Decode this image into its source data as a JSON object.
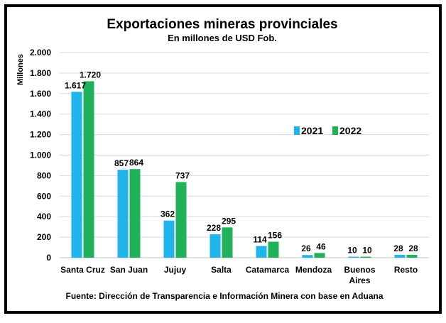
{
  "chart_data": {
    "type": "bar",
    "title": "Exportaciones mineras provinciales",
    "subtitle": "En millones de USD Fob.",
    "ylabel": "Millones",
    "xlabel": "",
    "ylim": [
      0,
      2000
    ],
    "yticks": [
      0,
      200,
      400,
      600,
      800,
      1000,
      1200,
      1400,
      1600,
      1800,
      2000
    ],
    "ytick_labels": [
      "0",
      "200",
      "400",
      "600",
      "800",
      "1.000",
      "1.200",
      "1.400",
      "1.600",
      "1.800",
      "2.000"
    ],
    "categories": [
      "Santa Cruz",
      "San Juan",
      "Jujuy",
      "Salta",
      "Catamarca",
      "Mendoza",
      "Buenos Aires",
      "Resto"
    ],
    "series": [
      {
        "name": "2021",
        "color": "#1fb4ea",
        "values": [
          1617,
          857,
          362,
          228,
          114,
          26,
          10,
          28
        ],
        "labels": [
          "1.617",
          "857",
          "362",
          "228",
          "114",
          "26",
          "10",
          "28"
        ]
      },
      {
        "name": "2022",
        "color": "#1fb25a",
        "values": [
          1720,
          864,
          737,
          295,
          156,
          46,
          10,
          28
        ],
        "labels": [
          "1.720",
          "864",
          "737",
          "295",
          "156",
          "46",
          "10",
          "28"
        ]
      }
    ],
    "grid": true,
    "legend_position": "right",
    "source": "Fuente: Dirección de Transparencia e Información Minera con base en Aduana"
  }
}
